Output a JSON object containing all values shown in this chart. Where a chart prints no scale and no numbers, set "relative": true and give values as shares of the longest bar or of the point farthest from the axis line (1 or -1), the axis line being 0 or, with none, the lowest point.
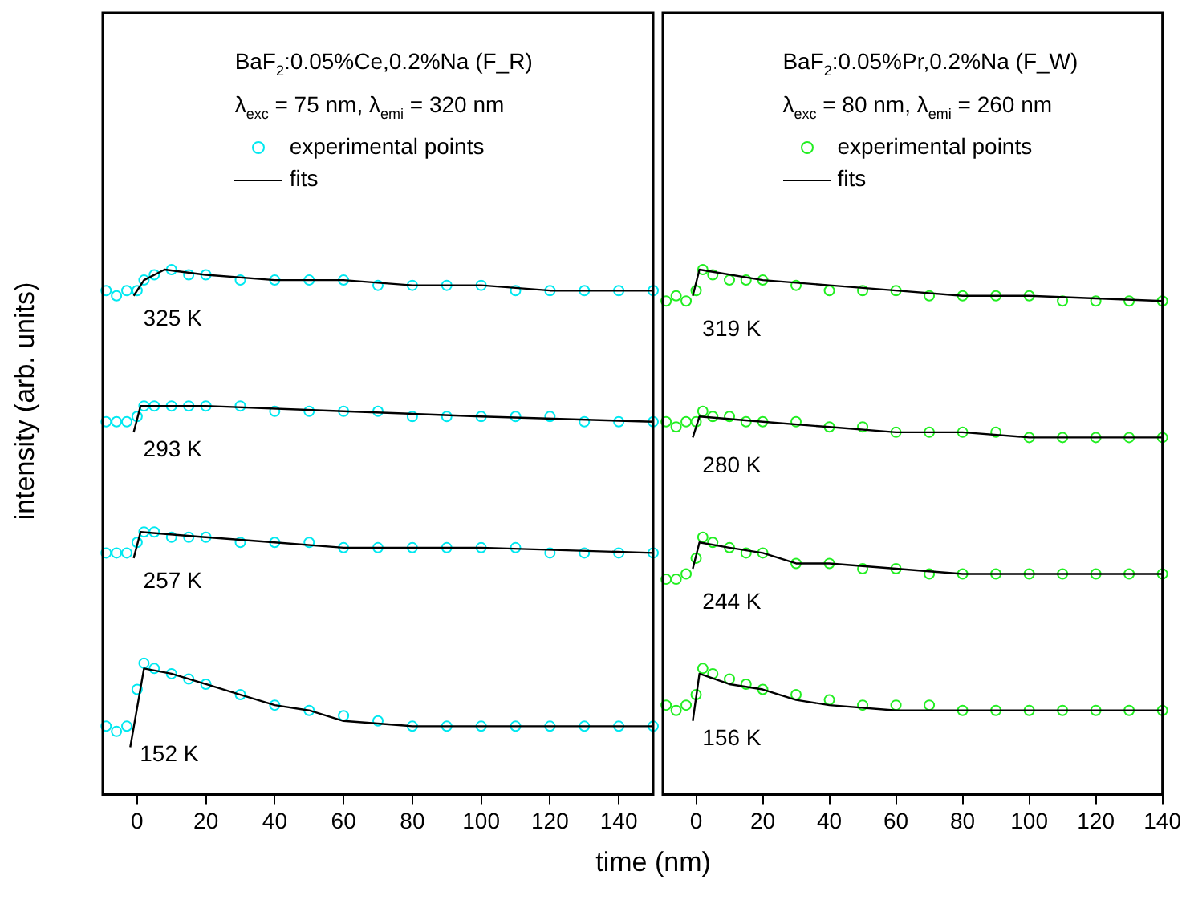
{
  "chart_data": [
    {
      "type": "line",
      "relative": true,
      "ylabel": "intensity (arb. units)",
      "xlabel": "time (nm)",
      "xlim": [
        -10,
        150
      ],
      "xticks": [
        0,
        20,
        40,
        60,
        80,
        100,
        120,
        140
      ],
      "tick_labels": "x",
      "grid": false,
      "legend": "top",
      "annotations": [
        "325 K",
        "293 K",
        "257 K",
        "152 K",
        "BaF$_{2}$:0.05%Ce,0.2%Na (F_R)",
        "λ$_{exc}$ = 75 nm, λ$_{emi}$ = 320 nm"
      ],
      "series": [
        {
          "name": "experimental points",
          "type": "scatter",
          "marker": "circle",
          "color": "#00e8f0",
          "x": [
            -9,
            -6,
            -3,
            0,
            2,
            5,
            10,
            15,
            20,
            30,
            40,
            50,
            60,
            70,
            80,
            90,
            100,
            110,
            120,
            130,
            140,
            150,
            -9,
            -6,
            -3,
            0,
            2,
            5,
            10,
            15,
            20,
            30,
            40,
            50,
            60,
            70,
            80,
            90,
            100,
            110,
            120,
            130,
            140,
            150,
            -9,
            -6,
            -3,
            0,
            2,
            5,
            10,
            15,
            20,
            30,
            40,
            50,
            60,
            70,
            80,
            90,
            100,
            110,
            120,
            130,
            140,
            150,
            -9,
            -6,
            -3,
            0,
            2,
            5,
            10,
            15,
            20,
            30,
            40,
            50,
            60,
            70,
            80,
            90,
            100,
            110,
            120,
            130,
            140,
            150
          ],
          "values": [
            0.96,
            0.95,
            0.96,
            0.96,
            0.98,
            0.99,
            1.0,
            0.99,
            0.99,
            0.98,
            0.98,
            0.98,
            0.98,
            0.97,
            0.97,
            0.97,
            0.97,
            0.96,
            0.96,
            0.96,
            0.96,
            0.96,
            0.71,
            0.71,
            0.71,
            0.72,
            0.74,
            0.74,
            0.74,
            0.74,
            0.74,
            0.74,
            0.73,
            0.73,
            0.73,
            0.73,
            0.72,
            0.72,
            0.72,
            0.72,
            0.72,
            0.71,
            0.71,
            0.71,
            0.46,
            0.46,
            0.46,
            0.48,
            0.5,
            0.5,
            0.49,
            0.49,
            0.49,
            0.48,
            0.48,
            0.48,
            0.47,
            0.47,
            0.47,
            0.47,
            0.47,
            0.47,
            0.46,
            0.46,
            0.46,
            0.46,
            0.13,
            0.12,
            0.13,
            0.2,
            0.25,
            0.24,
            0.23,
            0.22,
            0.21,
            0.19,
            0.17,
            0.16,
            0.15,
            0.14,
            0.13,
            0.13,
            0.13,
            0.13,
            0.13,
            0.13,
            0.13,
            0.13
          ]
        },
        {
          "name": "fits",
          "line_style": "solid",
          "color": "#000000",
          "x": [
            -1,
            2,
            8,
            20,
            40,
            60,
            80,
            100,
            120,
            150,
            null,
            -1,
            1,
            20,
            60,
            100,
            150,
            null,
            -1,
            1,
            20,
            40,
            60,
            100,
            150,
            null,
            -2,
            2,
            10,
            20,
            30,
            40,
            50,
            60,
            80,
            100,
            150
          ],
          "values": [
            0.95,
            0.98,
            1.0,
            0.99,
            0.98,
            0.98,
            0.97,
            0.97,
            0.96,
            0.96,
            null,
            0.69,
            0.74,
            0.74,
            0.73,
            0.72,
            0.71,
            null,
            0.45,
            0.5,
            0.49,
            0.48,
            0.47,
            0.47,
            0.46,
            null,
            0.09,
            0.24,
            0.23,
            0.21,
            0.19,
            0.17,
            0.16,
            0.14,
            0.13,
            0.13,
            0.13
          ]
        }
      ]
    },
    {
      "type": "line",
      "relative": true,
      "xlim": [
        -10,
        140
      ],
      "xticks": [
        0,
        20,
        40,
        60,
        80,
        100,
        120,
        140
      ],
      "tick_labels": "x",
      "grid": false,
      "legend": "top",
      "annotations": [
        "319 K",
        "280 K",
        "244 K",
        "156 K",
        "BaF$_{2}$:0.05%Pr,0.2%Na (F_W)",
        "λ$_{exc}$ = 80 nm, λ$_{emi}$ = 260 nm"
      ],
      "series": [
        {
          "name": "experimental points",
          "type": "scatter",
          "marker": "circle",
          "color": "#22ee22",
          "x": [
            -9,
            -6,
            -3,
            0,
            2,
            5,
            10,
            15,
            20,
            30,
            40,
            50,
            60,
            70,
            80,
            90,
            100,
            110,
            120,
            130,
            140,
            -9,
            -6,
            -3,
            0,
            2,
            5,
            10,
            15,
            20,
            30,
            40,
            50,
            60,
            70,
            80,
            90,
            100,
            110,
            120,
            130,
            140,
            -9,
            -6,
            -3,
            0,
            2,
            5,
            10,
            15,
            20,
            30,
            40,
            50,
            60,
            70,
            80,
            90,
            100,
            110,
            120,
            130,
            140,
            -9,
            -6,
            -3,
            0,
            2,
            5,
            10,
            15,
            20,
            30,
            40,
            50,
            60,
            70,
            80,
            90,
            100,
            110,
            120,
            130,
            140
          ],
          "values": [
            0.94,
            0.95,
            0.94,
            0.96,
            1.0,
            0.99,
            0.98,
            0.98,
            0.98,
            0.97,
            0.96,
            0.96,
            0.96,
            0.95,
            0.95,
            0.95,
            0.95,
            0.94,
            0.94,
            0.94,
            0.94,
            0.71,
            0.7,
            0.71,
            0.71,
            0.73,
            0.72,
            0.72,
            0.71,
            0.71,
            0.71,
            0.7,
            0.7,
            0.69,
            0.69,
            0.69,
            0.69,
            0.68,
            0.68,
            0.68,
            0.68,
            0.68,
            0.41,
            0.41,
            0.42,
            0.45,
            0.49,
            0.48,
            0.47,
            0.46,
            0.46,
            0.44,
            0.44,
            0.43,
            0.43,
            0.42,
            0.42,
            0.42,
            0.42,
            0.42,
            0.42,
            0.42,
            0.42,
            0.17,
            0.16,
            0.17,
            0.19,
            0.24,
            0.23,
            0.22,
            0.21,
            0.2,
            0.19,
            0.18,
            0.17,
            0.17,
            0.17,
            0.16,
            0.16,
            0.16,
            0.16,
            0.16,
            0.16,
            0.16
          ]
        },
        {
          "name": "fits",
          "line_style": "solid",
          "color": "#000000",
          "x": [
            -1,
            1,
            20,
            40,
            60,
            80,
            100,
            140,
            null,
            -1,
            1,
            20,
            40,
            60,
            80,
            100,
            140,
            null,
            -1,
            1,
            10,
            20,
            30,
            40,
            60,
            80,
            100,
            140,
            null,
            -1,
            1,
            10,
            20,
            30,
            40,
            60,
            100,
            140
          ],
          "values": [
            0.95,
            1.0,
            0.98,
            0.97,
            0.96,
            0.95,
            0.95,
            0.94,
            null,
            0.68,
            0.72,
            0.71,
            0.7,
            0.69,
            0.69,
            0.68,
            0.68,
            null,
            0.43,
            0.48,
            0.47,
            0.46,
            0.44,
            0.44,
            0.43,
            0.42,
            0.42,
            0.42,
            null,
            0.14,
            0.23,
            0.21,
            0.2,
            0.18,
            0.17,
            0.16,
            0.16,
            0.16
          ]
        }
      ]
    }
  ]
}
